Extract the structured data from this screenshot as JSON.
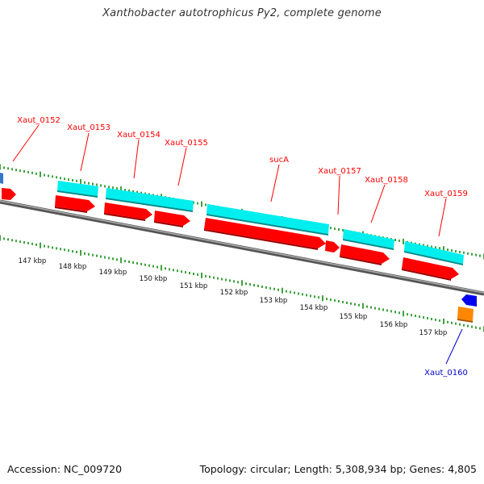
{
  "title": "Xanthobacter autotrophicus Py2, complete genome",
  "footer": {
    "accession": "Accession: NC_009720",
    "summary": "Topology: circular; Length: 5,308,934 bp; Genes: 4,805"
  },
  "colors": {
    "forward_cds": "#ff0000",
    "forward_gene": "#00eeee",
    "reverse_cds": "#0000ff",
    "reverse_gene": "#ff8800",
    "label_forward": "#ff0000",
    "label_reverse": "#0000cc",
    "backbone": "#888888",
    "ticks": "#118811"
  },
  "scale_labels": [
    "147 kbp",
    "148 kbp",
    "149 kbp",
    "150 kbp",
    "151 kbp",
    "152 kbp",
    "153 kbp",
    "154 kbp",
    "155 kbp",
    "156 kbp",
    "157 kbp"
  ],
  "gene_labels": [
    {
      "name": "Xaut_0152",
      "strand": "forward"
    },
    {
      "name": "Xaut_0153",
      "strand": "forward"
    },
    {
      "name": "Xaut_0154",
      "strand": "forward"
    },
    {
      "name": "Xaut_0155",
      "strand": "forward"
    },
    {
      "name": "sucA",
      "strand": "forward"
    },
    {
      "name": "Xaut_0157",
      "strand": "forward"
    },
    {
      "name": "Xaut_0158",
      "strand": "forward"
    },
    {
      "name": "Xaut_0159",
      "strand": "forward"
    },
    {
      "name": "Xaut_0160",
      "strand": "reverse"
    }
  ]
}
